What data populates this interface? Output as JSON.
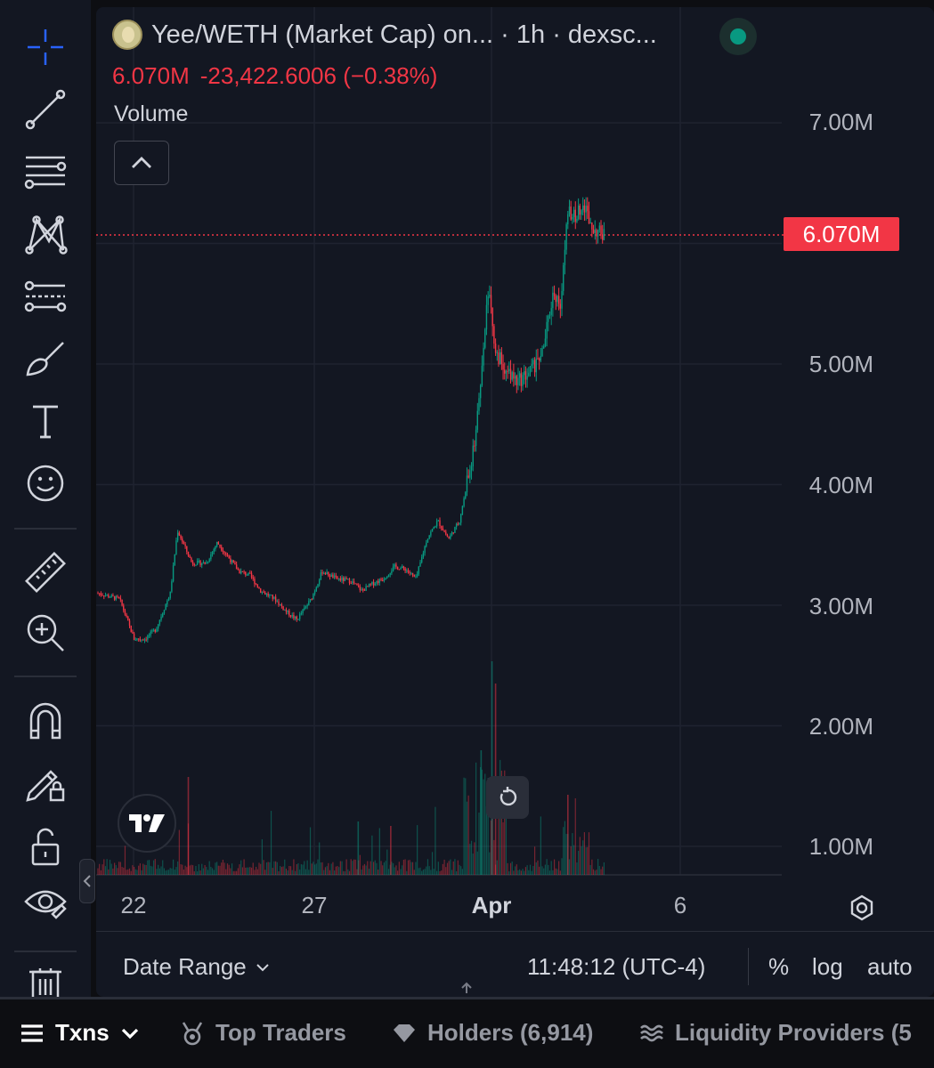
{
  "header": {
    "pair_title": "Yee/WETH (Market Cap) on... · 1h · dexsc...",
    "last_value": "6.070M",
    "change": "-23,422.6006 (−0.38%)",
    "volume_label": "Volume"
  },
  "price_tag": "6.070M",
  "y_axis": [
    "7.00M",
    "5.00M",
    "4.00M",
    "3.00M",
    "2.00M",
    "1.00M"
  ],
  "x_axis": [
    "22",
    "27",
    "Apr",
    "6"
  ],
  "bottom_bar": {
    "date_range": "Date Range",
    "clock": "11:48:12 (UTC-4)",
    "percent": "%",
    "log": "log",
    "auto": "auto"
  },
  "tabs": {
    "txns": "Txns",
    "top_traders": "Top Traders",
    "holders": "Holders (6,914)",
    "liquidity": "Liquidity Providers (5"
  },
  "icons": [
    "crosshair-icon",
    "trend-line-icon",
    "fib-icon",
    "pattern-icon",
    "forecast-icon",
    "brush-icon",
    "text-icon",
    "emoji-icon",
    "ruler-icon",
    "zoom-in-icon",
    "magnet-icon",
    "lock-drawing-icon",
    "lock-icon",
    "eye-icon",
    "trash-icon"
  ],
  "colors": {
    "up": "#089981",
    "down": "#f23645",
    "background": "#131722",
    "price_line": "#f23645"
  },
  "chart_data": {
    "type": "candlestick",
    "title": "Yee/WETH (Market Cap) on... · 1h · dexsc...",
    "ylim": [
      700000,
      7300000
    ],
    "last_value": 6070000,
    "x_ticks": [
      "22",
      "27",
      "Apr",
      "6"
    ],
    "series": [
      {
        "name": "Market Cap",
        "path": [
          [
            0,
            3.1
          ],
          [
            0.6,
            3.05
          ],
          [
            1.0,
            2.72
          ],
          [
            1.3,
            2.72
          ],
          [
            1.6,
            2.8
          ],
          [
            2.0,
            3.1
          ],
          [
            2.2,
            3.62
          ],
          [
            2.6,
            3.35
          ],
          [
            3.0,
            3.35
          ],
          [
            3.3,
            3.52
          ],
          [
            3.6,
            3.4
          ],
          [
            3.9,
            3.28
          ],
          [
            4.2,
            3.25
          ],
          [
            4.5,
            3.12
          ],
          [
            4.9,
            3.05
          ],
          [
            5.2,
            2.95
          ],
          [
            5.5,
            2.88
          ],
          [
            5.9,
            3.05
          ],
          [
            6.2,
            3.28
          ],
          [
            6.6,
            3.22
          ],
          [
            7.0,
            3.2
          ],
          [
            7.3,
            3.12
          ],
          [
            7.6,
            3.18
          ],
          [
            7.9,
            3.22
          ],
          [
            8.2,
            3.32
          ],
          [
            8.5,
            3.3
          ],
          [
            8.8,
            3.22
          ],
          [
            9.1,
            3.55
          ],
          [
            9.4,
            3.7
          ],
          [
            9.7,
            3.55
          ],
          [
            10.0,
            3.7
          ],
          [
            10.2,
            4.0
          ],
          [
            10.4,
            4.3
          ],
          [
            10.6,
            4.9
          ],
          [
            10.8,
            5.65
          ],
          [
            11.0,
            5.1
          ],
          [
            11.3,
            4.95
          ],
          [
            11.6,
            4.85
          ],
          [
            12.0,
            4.95
          ],
          [
            12.3,
            5.1
          ],
          [
            12.6,
            5.6
          ],
          [
            12.8,
            5.5
          ],
          [
            13.0,
            6.3
          ],
          [
            13.2,
            6.2
          ],
          [
            13.4,
            6.35
          ],
          [
            13.7,
            6.12
          ],
          [
            14.0,
            6.07
          ]
        ]
      }
    ]
  }
}
